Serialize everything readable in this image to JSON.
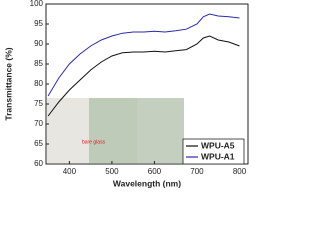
{
  "chart_data": {
    "type": "line",
    "x_label": "Wavelength (nm)",
    "y_label": "Transmittance (%)",
    "x": [
      350,
      375,
      400,
      425,
      450,
      475,
      500,
      525,
      550,
      575,
      600,
      625,
      650,
      675,
      700,
      715,
      730,
      750,
      775,
      800
    ],
    "series": [
      {
        "name": "WPU-A5",
        "color": "#111111",
        "values": [
          72,
          75.5,
          78.5,
          81,
          83.5,
          85.5,
          87,
          87.8,
          88,
          88,
          88.2,
          88,
          88.3,
          88.6,
          90,
          91.5,
          92,
          91,
          90.5,
          89.5
        ]
      },
      {
        "name": "WPU-A1",
        "color": "#2a2aa8",
        "values": [
          77,
          81.5,
          85,
          87.5,
          89.5,
          91,
          92,
          92.7,
          93,
          93,
          93.2,
          93,
          93.3,
          93.7,
          95,
          96.8,
          97.5,
          97,
          96.8,
          96.5
        ]
      }
    ],
    "annotation": "bare glass",
    "xlim": [
      345,
      820
    ],
    "xticks": [
      400,
      500,
      600,
      700,
      800
    ],
    "ylim": [
      60,
      100
    ],
    "yticks": [
      60,
      65,
      70,
      75,
      80,
      85,
      90,
      95,
      100
    ],
    "legend": "lower right"
  }
}
